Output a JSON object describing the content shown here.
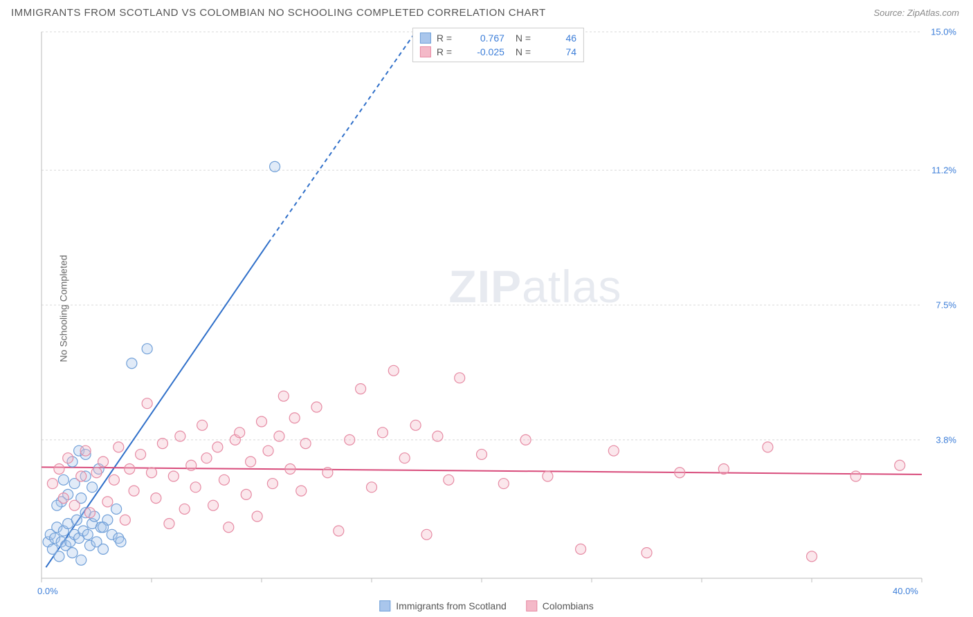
{
  "header": {
    "title": "IMMIGRANTS FROM SCOTLAND VS COLOMBIAN NO SCHOOLING COMPLETED CORRELATION CHART",
    "source": "Source: ZipAtlas.com"
  },
  "watermark": {
    "a": "ZIP",
    "b": "atlas"
  },
  "chart": {
    "type": "scatter",
    "ylabel": "No Schooling Completed",
    "xlim": [
      0,
      40
    ],
    "ylim": [
      0,
      15
    ],
    "x_ticks": [
      0,
      5,
      10,
      15,
      20,
      25,
      30,
      35,
      40
    ],
    "x_tick_labels": {
      "0": "0.0%",
      "40": "40.0%"
    },
    "y_grid": [
      3.8,
      7.5,
      11.2,
      15.0
    ],
    "y_tick_labels": [
      "3.8%",
      "7.5%",
      "11.2%",
      "15.0%"
    ],
    "background_color": "#ffffff",
    "grid_color": "#d8d8d8",
    "grid_dash": "3,3",
    "axis_color": "#bbbbbb",
    "tick_color": "#bbbbbb",
    "label_color": "#3b7dd8",
    "marker_radius": 7.5,
    "marker_stroke_width": 1.2,
    "marker_fill_opacity": 0.35,
    "series": [
      {
        "key": "scotland",
        "label": "Immigrants from Scotland",
        "color_fill": "#a9c6ec",
        "color_stroke": "#6f9fd8",
        "r_value": "0.767",
        "n_value": "46",
        "regression": {
          "solid": {
            "x1": 0.2,
            "y1": 0.3,
            "x2": 10.3,
            "y2": 9.2
          },
          "dashed": {
            "x1": 10.3,
            "y1": 9.2,
            "x2": 17.0,
            "y2": 15.0
          },
          "stroke": "#2f6fc9",
          "width": 2,
          "dash": "6,5"
        },
        "points": [
          [
            0.3,
            1.0
          ],
          [
            0.4,
            1.2
          ],
          [
            0.5,
            0.8
          ],
          [
            0.6,
            1.1
          ],
          [
            0.7,
            1.4
          ],
          [
            0.8,
            0.6
          ],
          [
            0.9,
            1.0
          ],
          [
            1.0,
            1.3
          ],
          [
            1.1,
            0.9
          ],
          [
            1.2,
            1.5
          ],
          [
            1.3,
            1.0
          ],
          [
            1.4,
            0.7
          ],
          [
            1.5,
            1.2
          ],
          [
            1.6,
            1.6
          ],
          [
            1.7,
            1.1
          ],
          [
            1.8,
            0.5
          ],
          [
            1.9,
            1.3
          ],
          [
            2.0,
            1.8
          ],
          [
            2.1,
            1.2
          ],
          [
            2.2,
            0.9
          ],
          [
            2.3,
            1.5
          ],
          [
            2.5,
            1.0
          ],
          [
            2.7,
            1.4
          ],
          [
            2.8,
            0.8
          ],
          [
            3.0,
            1.6
          ],
          [
            3.2,
            1.2
          ],
          [
            3.4,
            1.9
          ],
          [
            3.5,
            1.1
          ],
          [
            0.9,
            2.1
          ],
          [
            1.2,
            2.3
          ],
          [
            1.5,
            2.6
          ],
          [
            1.8,
            2.2
          ],
          [
            2.0,
            2.8
          ],
          [
            2.3,
            2.5
          ],
          [
            2.6,
            3.0
          ],
          [
            1.4,
            3.2
          ],
          [
            1.7,
            3.5
          ],
          [
            2.0,
            3.4
          ],
          [
            1.0,
            2.7
          ],
          [
            0.7,
            2.0
          ],
          [
            2.4,
            1.7
          ],
          [
            2.8,
            1.4
          ],
          [
            3.6,
            1.0
          ],
          [
            4.1,
            5.9
          ],
          [
            4.8,
            6.3
          ],
          [
            10.6,
            11.3
          ]
        ]
      },
      {
        "key": "colombians",
        "label": "Colombians",
        "color_fill": "#f4b9c8",
        "color_stroke": "#e68aa3",
        "r_value": "-0.025",
        "n_value": "74",
        "regression": {
          "solid": {
            "x1": 0,
            "y1": 3.05,
            "x2": 40,
            "y2": 2.85
          },
          "stroke": "#d84a7a",
          "width": 2
        },
        "points": [
          [
            0.5,
            2.6
          ],
          [
            0.8,
            3.0
          ],
          [
            1.0,
            2.2
          ],
          [
            1.2,
            3.3
          ],
          [
            1.5,
            2.0
          ],
          [
            1.8,
            2.8
          ],
          [
            2.0,
            3.5
          ],
          [
            2.2,
            1.8
          ],
          [
            2.5,
            2.9
          ],
          [
            2.8,
            3.2
          ],
          [
            3.0,
            2.1
          ],
          [
            3.3,
            2.7
          ],
          [
            3.5,
            3.6
          ],
          [
            3.8,
            1.6
          ],
          [
            4.0,
            3.0
          ],
          [
            4.2,
            2.4
          ],
          [
            4.5,
            3.4
          ],
          [
            4.8,
            4.8
          ],
          [
            5.0,
            2.9
          ],
          [
            5.2,
            2.2
          ],
          [
            5.5,
            3.7
          ],
          [
            5.8,
            1.5
          ],
          [
            6.0,
            2.8
          ],
          [
            6.3,
            3.9
          ],
          [
            6.5,
            1.9
          ],
          [
            6.8,
            3.1
          ],
          [
            7.0,
            2.5
          ],
          [
            7.3,
            4.2
          ],
          [
            7.5,
            3.3
          ],
          [
            7.8,
            2.0
          ],
          [
            8.0,
            3.6
          ],
          [
            8.3,
            2.7
          ],
          [
            8.5,
            1.4
          ],
          [
            8.8,
            3.8
          ],
          [
            9.0,
            4.0
          ],
          [
            9.3,
            2.3
          ],
          [
            9.5,
            3.2
          ],
          [
            9.8,
            1.7
          ],
          [
            10.0,
            4.3
          ],
          [
            10.3,
            3.5
          ],
          [
            10.5,
            2.6
          ],
          [
            10.8,
            3.9
          ],
          [
            11.0,
            5.0
          ],
          [
            11.3,
            3.0
          ],
          [
            11.5,
            4.4
          ],
          [
            11.8,
            2.4
          ],
          [
            12.0,
            3.7
          ],
          [
            12.5,
            4.7
          ],
          [
            13.0,
            2.9
          ],
          [
            13.5,
            1.3
          ],
          [
            14.0,
            3.8
          ],
          [
            14.5,
            5.2
          ],
          [
            15.0,
            2.5
          ],
          [
            15.5,
            4.0
          ],
          [
            16.0,
            5.7
          ],
          [
            16.5,
            3.3
          ],
          [
            17.0,
            4.2
          ],
          [
            17.5,
            1.2
          ],
          [
            18.0,
            3.9
          ],
          [
            18.5,
            2.7
          ],
          [
            19.0,
            5.5
          ],
          [
            20.0,
            3.4
          ],
          [
            21.0,
            2.6
          ],
          [
            22.0,
            3.8
          ],
          [
            23.0,
            2.8
          ],
          [
            24.5,
            0.8
          ],
          [
            26.0,
            3.5
          ],
          [
            27.5,
            0.7
          ],
          [
            29.0,
            2.9
          ],
          [
            31.0,
            3.0
          ],
          [
            33.0,
            3.6
          ],
          [
            35.0,
            0.6
          ],
          [
            37.0,
            2.8
          ],
          [
            39.0,
            3.1
          ]
        ]
      }
    ]
  },
  "legend_top": {
    "r_label": "R =",
    "n_label": "N ="
  }
}
